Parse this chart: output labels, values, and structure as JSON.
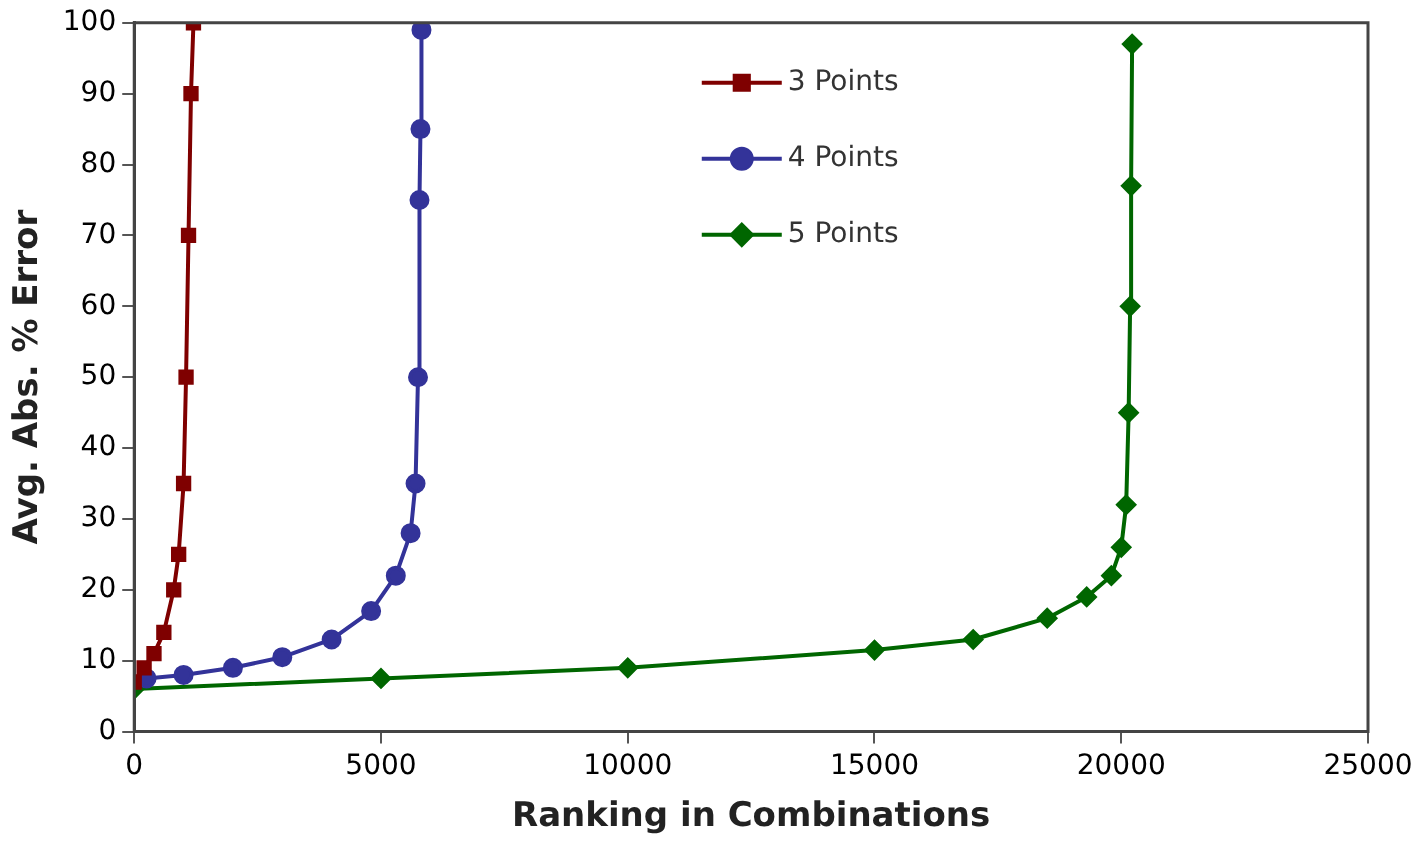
{
  "chart_data": {
    "type": "line",
    "xlabel": "Ranking in Combinations",
    "ylabel": "Avg. Abs. % Error",
    "xlim": [
      0,
      25000
    ],
    "xticks": [
      0,
      5000,
      10000,
      15000,
      20000,
      25000
    ],
    "ylim": [
      0,
      100
    ],
    "yticks": [
      0,
      10,
      20,
      30,
      40,
      50,
      60,
      70,
      80,
      90,
      100
    ],
    "grid": false,
    "legend": "top",
    "line_style": "solid",
    "series": [
      {
        "name": "3 Points",
        "color": "#7f0000",
        "marker": "square",
        "x": [
          0,
          200,
          400,
          600,
          800,
          900,
          1000,
          1050,
          1100,
          1150,
          1200
        ],
        "values": [
          7,
          9,
          11,
          14,
          20,
          25,
          35,
          50,
          70,
          90,
          100
        ]
      },
      {
        "name": "4 Points",
        "color": "#333399",
        "marker": "circle",
        "x": [
          250,
          1000,
          2000,
          3000,
          4000,
          4800,
          5300,
          5600,
          5700,
          5750,
          5780,
          5800,
          5820
        ],
        "values": [
          7.5,
          8,
          9,
          10.5,
          13,
          17,
          22,
          28,
          35,
          50,
          75,
          85,
          99
        ]
      },
      {
        "name": "5 Points",
        "color": "#006600",
        "marker": "diamond",
        "x": [
          0,
          5000,
          10000,
          15000,
          17000,
          18500,
          19300,
          19800,
          20000,
          20100,
          20150,
          20180,
          20200,
          20220
        ],
        "values": [
          6,
          7.5,
          9,
          11.5,
          13,
          16,
          19,
          22,
          26,
          32,
          45,
          60,
          77,
          97
        ]
      }
    ]
  }
}
